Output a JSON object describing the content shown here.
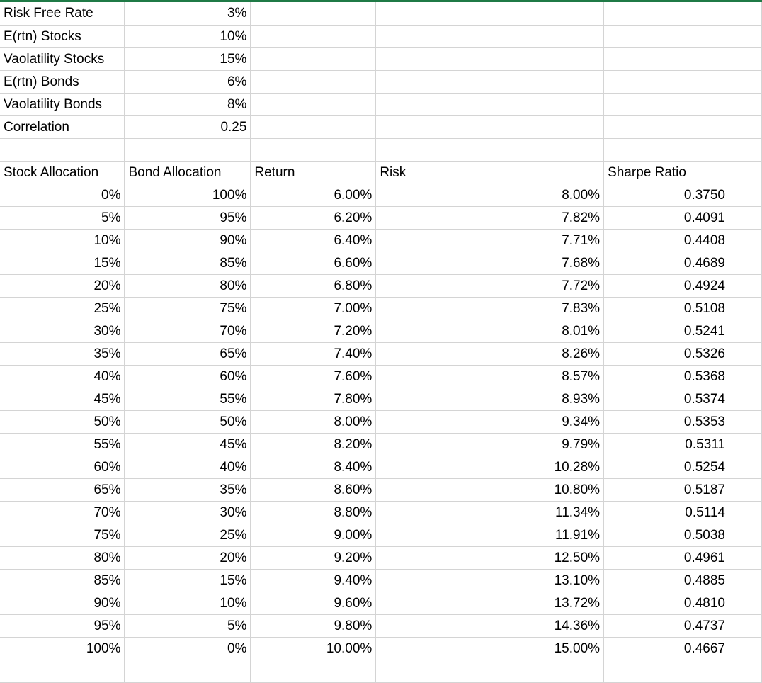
{
  "inputs": [
    {
      "label": "Risk Free Rate",
      "value": "3%"
    },
    {
      "label": "E(rtn) Stocks",
      "value": "10%"
    },
    {
      "label": "Vaolatility Stocks",
      "value": "15%"
    },
    {
      "label": "E(rtn) Bonds",
      "value": "6%"
    },
    {
      "label": "Vaolatility Bonds",
      "value": "8%"
    },
    {
      "label": "Correlation",
      "value": "0.25"
    }
  ],
  "headers": [
    "Stock Allocation",
    "Bond Allocation",
    "Return",
    "Risk",
    "Sharpe Ratio"
  ],
  "rows": [
    [
      "0%",
      "100%",
      "6.00%",
      "8.00%",
      "0.3750"
    ],
    [
      "5%",
      "95%",
      "6.20%",
      "7.82%",
      "0.4091"
    ],
    [
      "10%",
      "90%",
      "6.40%",
      "7.71%",
      "0.4408"
    ],
    [
      "15%",
      "85%",
      "6.60%",
      "7.68%",
      "0.4689"
    ],
    [
      "20%",
      "80%",
      "6.80%",
      "7.72%",
      "0.4924"
    ],
    [
      "25%",
      "75%",
      "7.00%",
      "7.83%",
      "0.5108"
    ],
    [
      "30%",
      "70%",
      "7.20%",
      "8.01%",
      "0.5241"
    ],
    [
      "35%",
      "65%",
      "7.40%",
      "8.26%",
      "0.5326"
    ],
    [
      "40%",
      "60%",
      "7.60%",
      "8.57%",
      "0.5368"
    ],
    [
      "45%",
      "55%",
      "7.80%",
      "8.93%",
      "0.5374"
    ],
    [
      "50%",
      "50%",
      "8.00%",
      "9.34%",
      "0.5353"
    ],
    [
      "55%",
      "45%",
      "8.20%",
      "9.79%",
      "0.5311"
    ],
    [
      "60%",
      "40%",
      "8.40%",
      "10.28%",
      "0.5254"
    ],
    [
      "65%",
      "35%",
      "8.60%",
      "10.80%",
      "0.5187"
    ],
    [
      "70%",
      "30%",
      "8.80%",
      "11.34%",
      "0.5114"
    ],
    [
      "75%",
      "25%",
      "9.00%",
      "11.91%",
      "0.5038"
    ],
    [
      "80%",
      "20%",
      "9.20%",
      "12.50%",
      "0.4961"
    ],
    [
      "85%",
      "15%",
      "9.40%",
      "13.10%",
      "0.4885"
    ],
    [
      "90%",
      "10%",
      "9.60%",
      "13.72%",
      "0.4810"
    ],
    [
      "95%",
      "5%",
      "9.80%",
      "14.36%",
      "0.4737"
    ],
    [
      "100%",
      "0%",
      "10.00%",
      "15.00%",
      "0.4667"
    ]
  ]
}
